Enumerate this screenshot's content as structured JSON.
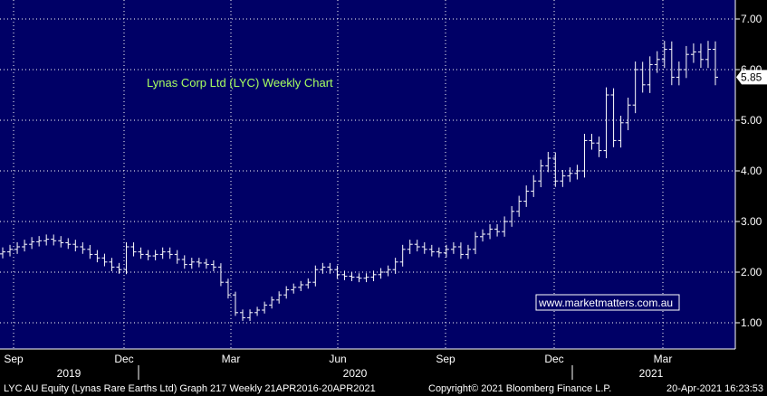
{
  "chart_data": {
    "type": "bar",
    "subtype": "ohlc",
    "title": "Lynas Corp Ltd (LYC) Weekly Chart",
    "watermark": "www.marketmatters.com.au",
    "last_price_label": "5.85",
    "last_price": 5.85,
    "ylim": [
      0.5,
      7.25
    ],
    "yticks": [
      1.0,
      2.0,
      3.0,
      4.0,
      5.0,
      6.0,
      7.0
    ],
    "ytick_labels": [
      "1.00",
      "2.00",
      "3.00",
      "4.00",
      "5.00",
      "6.00",
      "7.00"
    ],
    "grid": true,
    "x_month_labels": [
      "Sep",
      "Dec",
      "Mar",
      "Jun",
      "Sep",
      "Dec",
      "Mar"
    ],
    "x_year_labels": [
      "2019",
      "2020",
      "2021"
    ],
    "weekly_closes": [
      2.4,
      2.45,
      2.5,
      2.55,
      2.6,
      2.62,
      2.65,
      2.62,
      2.58,
      2.55,
      2.5,
      2.45,
      2.35,
      2.28,
      2.2,
      2.1,
      2.05,
      2.5,
      2.4,
      2.35,
      2.32,
      2.35,
      2.4,
      2.35,
      2.25,
      2.15,
      2.2,
      2.18,
      2.15,
      2.1,
      1.8,
      1.55,
      1.2,
      1.1,
      1.2,
      1.25,
      1.35,
      1.45,
      1.55,
      1.65,
      1.7,
      1.75,
      1.8,
      2.05,
      2.1,
      2.05,
      1.95,
      1.92,
      1.9,
      1.88,
      1.9,
      1.95,
      2.0,
      2.05,
      2.2,
      2.45,
      2.55,
      2.5,
      2.45,
      2.4,
      2.38,
      2.45,
      2.5,
      2.35,
      2.45,
      2.7,
      2.75,
      2.85,
      2.8,
      3.0,
      3.2,
      3.4,
      3.6,
      3.8,
      4.1,
      4.25,
      3.8,
      3.9,
      3.95,
      4.0,
      4.6,
      4.55,
      4.4,
      5.5,
      4.6,
      4.95,
      5.3,
      6.0,
      5.7,
      6.1,
      6.2,
      6.4,
      5.85,
      6.0,
      6.3,
      6.35,
      6.2,
      6.4,
      5.85
    ],
    "footer_left": "LYC AU Equity (Lynas Rare Earths Ltd) Graph 217  Weekly 21APR2016-20APR2021",
    "footer_mid": "Copyright© 2021 Bloomberg Finance L.P.",
    "footer_right": "20-Apr-2021 16:23:53"
  },
  "colors": {
    "plot_bg": "#000066",
    "grid": "#ffffff",
    "bars": "#ffffff",
    "title": "#a8ff60",
    "price_tag_bg": "#ffffff",
    "price_tag_text": "#000000",
    "watermark": "#ffffff"
  }
}
